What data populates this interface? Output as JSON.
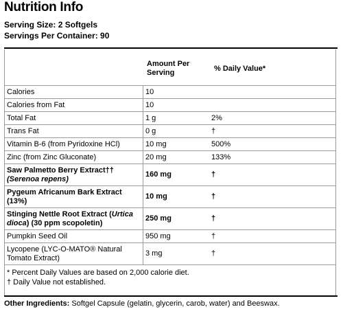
{
  "title": "Nutrition Info",
  "serving_size": "Serving Size: 2 Softgels",
  "servings_per_container": "Servings Per Container: 90",
  "table": {
    "header_amount": "Amount Per Serving",
    "header_dv": "% Daily Value*",
    "rows": [
      {
        "name": "Calories",
        "amount": "10",
        "dv": "",
        "bold": false
      },
      {
        "name": "Calories from Fat",
        "amount": "10",
        "dv": "",
        "bold": false
      },
      {
        "name": "Total Fat",
        "amount": "1 g",
        "dv": "2%",
        "bold": false
      },
      {
        "name": "Trans Fat",
        "amount": "0 g",
        "dv": "†",
        "bold": false
      },
      {
        "name": "Vitamin B-6 (from Pyridoxine HCl)",
        "amount": "10 mg",
        "dv": "500%",
        "bold": false
      },
      {
        "name": "Zinc (from Zinc Gluconate)",
        "amount": "20 mg",
        "dv": "133%",
        "bold": false
      },
      {
        "name_parts": [
          "Saw Palmetto Berry Extract††",
          "(Serenoa repens)"
        ],
        "amount": "160 mg",
        "dv": "†",
        "bold": true
      },
      {
        "name_parts": [
          "Pygeum Africanum Bark Extract",
          "(13%)"
        ],
        "amount": "10 mg",
        "dv": "†",
        "bold": true
      },
      {
        "name_parts": [
          "Stinging Nettle Root Extract (",
          "Urtica",
          "dioca",
          ") (30 ppm scopoletin)"
        ],
        "amount": "250 mg",
        "dv": "†",
        "bold": true
      },
      {
        "name": "Pumpkin Seed Oil",
        "amount": "950 mg",
        "dv": "†",
        "bold": false
      },
      {
        "name": "Lycopene (LYC-O-MATO® Natural Tomato Extract)",
        "amount": "3 mg",
        "dv": "†",
        "bold": false
      }
    ]
  },
  "footnotes": [
    "* Percent Daily Values are based on 2,000 calorie diet.",
    "† Daily Value not established."
  ],
  "other_ingredients": {
    "label": "Other Ingredients:",
    "text": " Softgel Capsule (gelatin, glycerin, carob, water) and Beeswax."
  }
}
